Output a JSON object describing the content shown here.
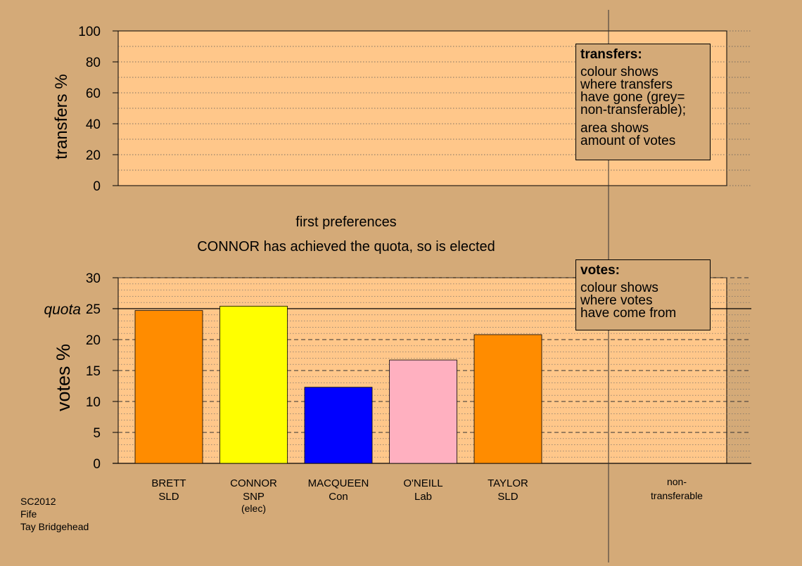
{
  "chart_data": [
    {
      "type": "bar",
      "ylabel": "transfers %",
      "ylim": [
        0,
        100
      ],
      "yticks": [
        0,
        20,
        40,
        60,
        80,
        100
      ],
      "categories": [],
      "values": [],
      "grid": true
    },
    {
      "type": "bar",
      "ylabel": "votes %",
      "ylim": [
        0,
        30
      ],
      "yticks": [
        0,
        5,
        10,
        15,
        20,
        25,
        30
      ],
      "quota_label": "quota",
      "quota_value": 25,
      "grid": true,
      "categories": [
        {
          "name": "BRETT",
          "party": "SLD",
          "note": ""
        },
        {
          "name": "CONNOR",
          "party": "SNP",
          "note": "(elec)"
        },
        {
          "name": "MACQUEEN",
          "party": "Con",
          "note": ""
        },
        {
          "name": "O'NEILL",
          "party": "Lab",
          "note": ""
        },
        {
          "name": "TAYLOR",
          "party": "SLD",
          "note": ""
        }
      ],
      "values": [
        24.7,
        25.4,
        12.3,
        16.7,
        20.8
      ],
      "colors": [
        "#ff8c00",
        "#ffff00",
        "#0000ff",
        "#ffb0c0",
        "#ff8c00"
      ],
      "nontransferable_label": [
        "non-",
        "transferable"
      ]
    }
  ],
  "stage_title": "first preferences",
  "stage_message": "CONNOR has achieved the quota, so is elected",
  "legend_transfers": {
    "title": "transfers:",
    "lines1": [
      "colour shows",
      "where transfers",
      "have gone (grey=",
      "non-transferable);"
    ],
    "lines2": [
      "area shows",
      "amount of votes"
    ]
  },
  "legend_votes": {
    "title": "votes:",
    "lines": [
      "colour shows",
      "where votes",
      "have come from"
    ]
  },
  "footer": [
    "SC2012",
    "Fife",
    "Tay Bridgehead"
  ]
}
